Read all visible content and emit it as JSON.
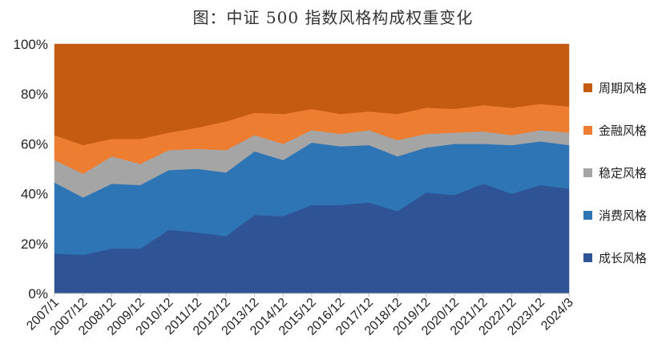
{
  "chart_data": {
    "type": "area",
    "stacked": true,
    "title": "图：中证 500 指数风格构成权重变化",
    "x": [
      "2007/1",
      "2007/12",
      "2008/12",
      "2009/12",
      "2010/12",
      "2011/12",
      "2012/12",
      "2013/12",
      "2014/12",
      "2015/12",
      "2016/12",
      "2017/12",
      "2018/12",
      "2019/12",
      "2020/12",
      "2021/12",
      "2022/12",
      "2023/12",
      "2024/3"
    ],
    "ylim": [
      0,
      100
    ],
    "yticks": [
      "0%",
      "20%",
      "40%",
      "60%",
      "80%",
      "100%"
    ],
    "grid": true,
    "legend_position": "right",
    "series": [
      {
        "name": "成长风格",
        "color": "#2E5496",
        "values": [
          16,
          15.5,
          18,
          18,
          25.5,
          24.5,
          23,
          31.5,
          31,
          35.5,
          35.5,
          36.5,
          33,
          40.5,
          39.5,
          44,
          40,
          43.5,
          42
        ]
      },
      {
        "name": "消费风格",
        "color": "#2E75B6",
        "values": [
          28.5,
          23,
          26,
          25.5,
          24,
          25.5,
          25.5,
          25.5,
          22.5,
          25,
          23.5,
          23,
          22,
          18,
          20.5,
          16,
          19.5,
          17.5,
          17.5
        ]
      },
      {
        "name": "稳定风格",
        "color": "#A5A5A5",
        "values": [
          9,
          9.5,
          11,
          8.5,
          8,
          8,
          9,
          6.5,
          6.5,
          5,
          5,
          6,
          6.5,
          5.5,
          4.5,
          5,
          4,
          4.5,
          5
        ]
      },
      {
        "name": "金融风格",
        "color": "#ED7D31",
        "values": [
          10,
          11.5,
          7,
          10,
          7,
          8.5,
          11.5,
          9,
          12,
          8.5,
          8,
          7.5,
          10.5,
          10.5,
          9.5,
          10.5,
          11,
          10.5,
          10.5
        ]
      },
      {
        "name": "周期风格",
        "color": "#C55A11",
        "values": [
          36.5,
          40.5,
          38,
          38,
          35.5,
          33.5,
          31,
          27.5,
          28,
          26,
          28,
          27,
          28,
          25.5,
          26,
          24.5,
          25.5,
          24,
          25
        ]
      }
    ]
  }
}
